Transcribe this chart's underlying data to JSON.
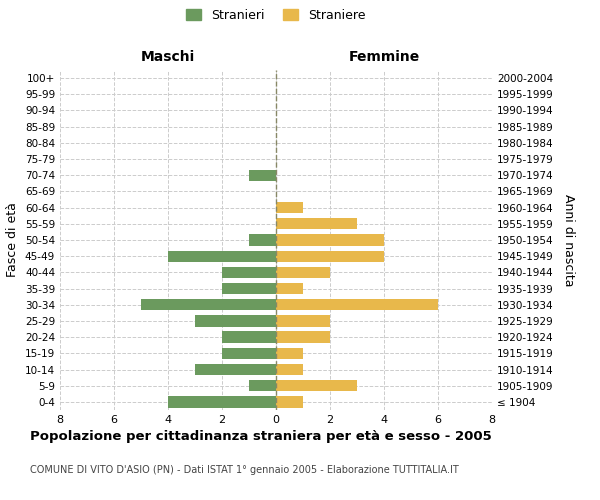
{
  "age_groups": [
    "100+",
    "95-99",
    "90-94",
    "85-89",
    "80-84",
    "75-79",
    "70-74",
    "65-69",
    "60-64",
    "55-59",
    "50-54",
    "45-49",
    "40-44",
    "35-39",
    "30-34",
    "25-29",
    "20-24",
    "15-19",
    "10-14",
    "5-9",
    "0-4"
  ],
  "birth_years": [
    "≤ 1904",
    "1905-1909",
    "1910-1914",
    "1915-1919",
    "1920-1924",
    "1925-1929",
    "1930-1934",
    "1935-1939",
    "1940-1944",
    "1945-1949",
    "1950-1954",
    "1955-1959",
    "1960-1964",
    "1965-1969",
    "1970-1974",
    "1975-1979",
    "1980-1984",
    "1985-1989",
    "1990-1994",
    "1995-1999",
    "2000-2004"
  ],
  "males": [
    0,
    0,
    0,
    0,
    0,
    0,
    1,
    0,
    0,
    0,
    1,
    4,
    2,
    2,
    5,
    3,
    2,
    2,
    3,
    1,
    4
  ],
  "females": [
    0,
    0,
    0,
    0,
    0,
    0,
    0,
    0,
    1,
    3,
    4,
    4,
    2,
    1,
    6,
    2,
    2,
    1,
    1,
    3,
    1
  ],
  "male_color": "#6b9a5e",
  "female_color": "#e8b84b",
  "background_color": "#ffffff",
  "grid_color": "#cccccc",
  "center_line_color": "#888866",
  "title": "Popolazione per cittadinanza straniera per età e sesso - 2005",
  "subtitle": "COMUNE DI VITO D'ASIO (PN) - Dati ISTAT 1° gennaio 2005 - Elaborazione TUTTITALIA.IT",
  "xlabel_left": "Maschi",
  "xlabel_right": "Femmine",
  "ylabel_left": "Fasce di età",
  "ylabel_right": "Anni di nascita",
  "legend_male": "Stranieri",
  "legend_female": "Straniere",
  "xlim": 8
}
